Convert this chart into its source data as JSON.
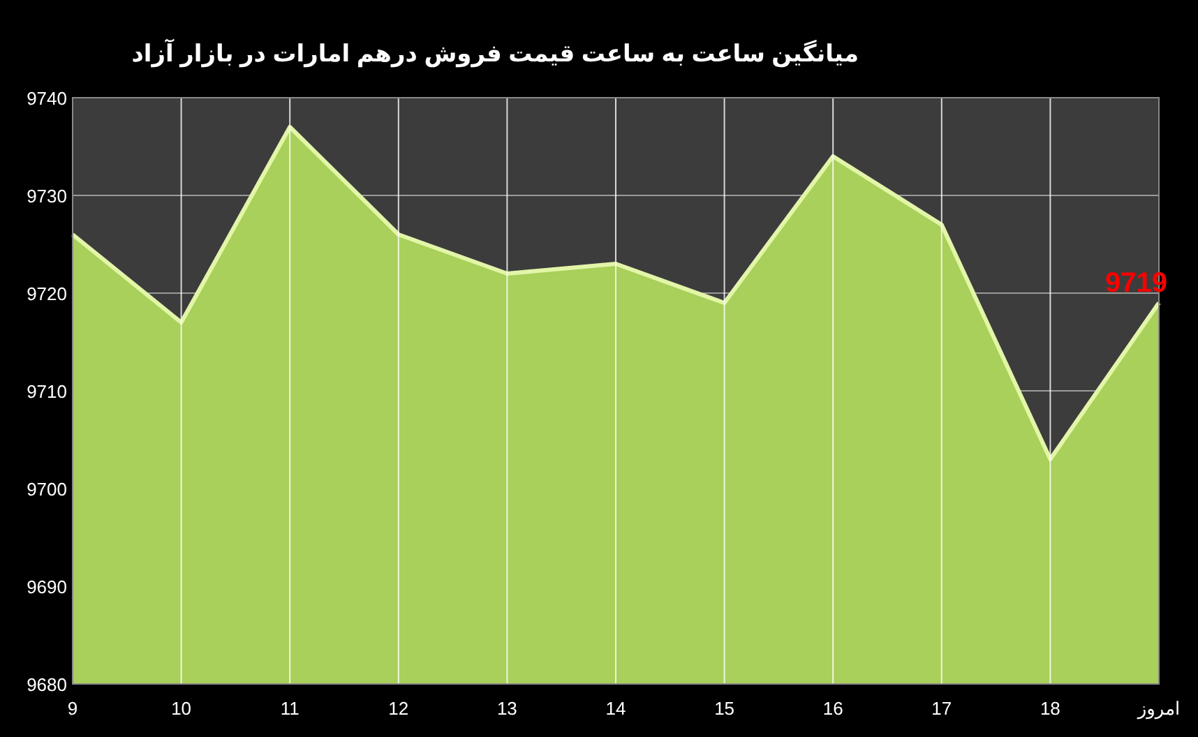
{
  "chart_data": {
    "type": "area",
    "title": "میانگین ساعت به ساعت قیمت فروش درهم امارات در بازار آزاد",
    "categories": [
      "9",
      "10",
      "11",
      "12",
      "13",
      "14",
      "15",
      "16",
      "17",
      "18",
      "امروز"
    ],
    "series": [
      {
        "color": "#a8d05a",
        "values": [
          9726,
          9717,
          9737,
          9726,
          9722,
          9723,
          9719,
          9734,
          9727,
          9703,
          9719
        ],
        "value_labels": [
          null,
          null,
          null,
          null,
          null,
          null,
          null,
          null,
          null,
          null,
          "9719"
        ]
      }
    ],
    "ylim": [
      9680,
      9740
    ],
    "yticks": [
      9680,
      9690,
      9700,
      9710,
      9720,
      9730,
      9740
    ],
    "grid": true
  }
}
